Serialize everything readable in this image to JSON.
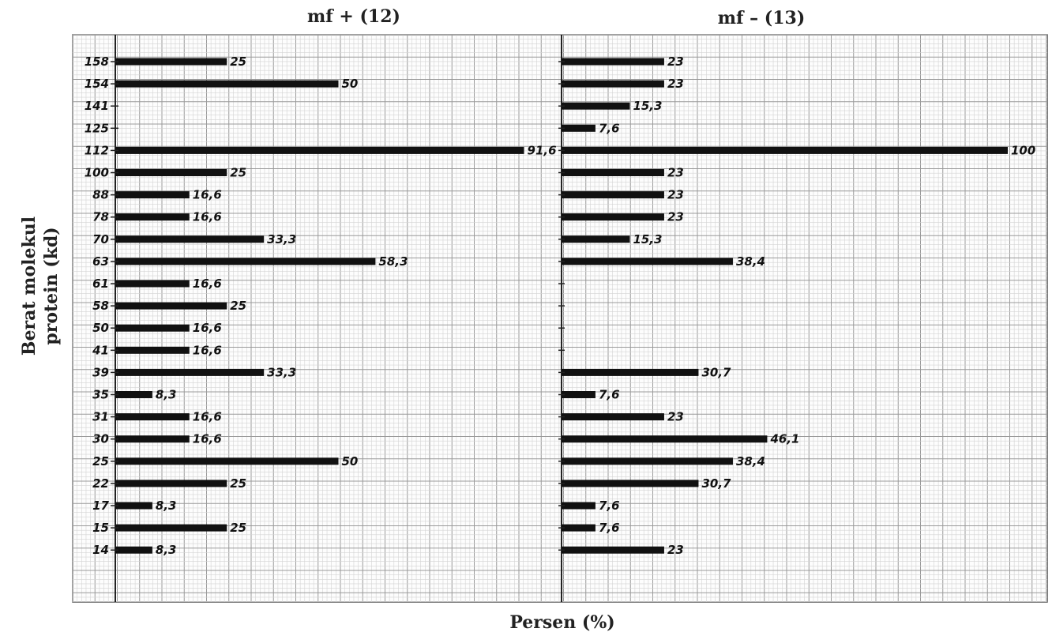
{
  "chart_data": {
    "type": "bar",
    "orientation": "horizontal",
    "ylabel_line1": "Berat molekul",
    "ylabel_line2": "protein (kd)",
    "xlabel": "Persen (%)",
    "categories": [
      "158",
      "154",
      "141",
      "125",
      "112",
      "100",
      "88",
      "78",
      "70",
      "63",
      "61",
      "58",
      "50",
      "41",
      "39",
      "35",
      "31",
      "30",
      "25",
      "22",
      "17",
      "15",
      "14"
    ],
    "grid": true,
    "legend": "none",
    "bar_color": "#111111",
    "panels": [
      {
        "title": "mf + (12)",
        "xlim": [
          0,
          100
        ],
        "values": [
          25,
          50,
          null,
          null,
          91.6,
          25,
          16.6,
          16.6,
          33.3,
          58.3,
          16.6,
          25,
          16.6,
          16.6,
          33.3,
          8.3,
          16.6,
          16.6,
          50,
          25,
          8.3,
          25,
          8.3
        ],
        "labels": [
          "25",
          "50",
          "",
          "",
          "91,6",
          "25",
          "16,6",
          "16,6",
          "33,3",
          "58,3",
          "16,6",
          "25",
          "16,6",
          "16,6",
          "33,3",
          "8,3",
          "16,6",
          "16,6",
          "50",
          "25",
          "8,3",
          "25",
          "8,3"
        ]
      },
      {
        "title": "mf – (13)",
        "xlim": [
          0,
          100
        ],
        "values": [
          23,
          23,
          15.3,
          7.6,
          100,
          23,
          23,
          23,
          15.3,
          38.4,
          null,
          null,
          null,
          null,
          30.7,
          7.6,
          23,
          46.1,
          38.4,
          30.7,
          7.6,
          7.6,
          23
        ],
        "labels": [
          "23",
          "23",
          "15,3",
          "7,6",
          "100",
          "23",
          "23",
          "23",
          "15,3",
          "38,4",
          "",
          "",
          "",
          "",
          "30,7",
          "7,6",
          "23",
          "46,1",
          "38,4",
          "30,7",
          "7,6",
          "7,6",
          "23"
        ]
      }
    ]
  }
}
